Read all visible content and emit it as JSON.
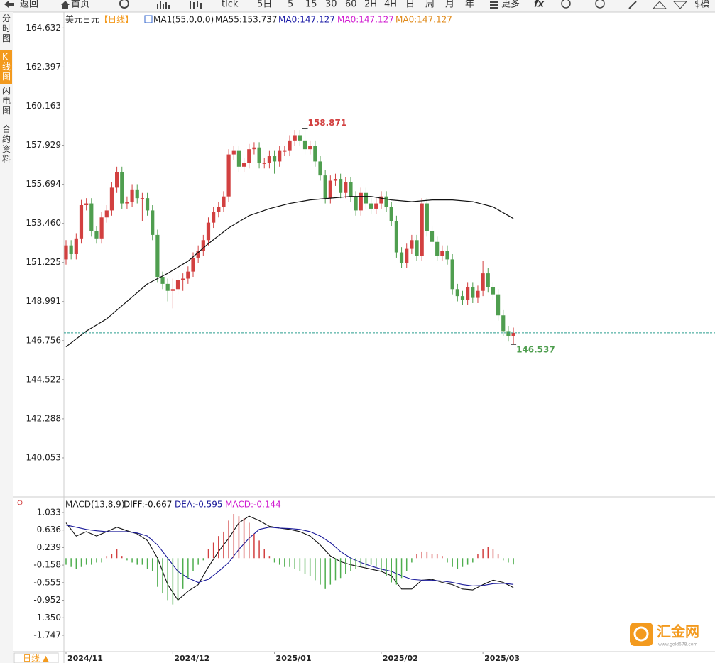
{
  "ui": {
    "toolbar": [
      "返回",
      "首页",
      "tick",
      "5日",
      "5",
      "15",
      "30",
      "60",
      "2H",
      "4H",
      "日",
      "周",
      "月",
      "年",
      "更多",
      "$模"
    ],
    "side_tabs": [
      "分时图",
      "K线图",
      "闪电图",
      "合约资料"
    ],
    "period_button": "日线 ▲",
    "logo": "汇金网",
    "logo_url": "www.gold678.com"
  },
  "chart_data": [
    {
      "type": "candlestick",
      "title": "美元日元",
      "period": "【日线】",
      "indicator_label": "MA1(55,0,0,0)",
      "ma_labels": [
        {
          "text": "MA55:153.737",
          "color": "#222222"
        },
        {
          "text": "MA0:147.127",
          "color": "#1a1aa6"
        },
        {
          "text": "MA0:147.127",
          "color": "#d01ad0"
        },
        {
          "text": "MA0:147.127",
          "color": "#e08a1a"
        }
      ],
      "up_color": "#d24040",
      "down_color": "#4f9e4f",
      "last_price_line": true,
      "last_price_color": "#2a9d8f",
      "ylim": [
        137.9,
        165.5
      ],
      "yticks": [
        164.632,
        162.397,
        160.163,
        157.929,
        155.694,
        {
          "value": 153.46,
          "label": "153.460"
        },
        151.225,
        148.991,
        146.756,
        144.522,
        142.288,
        140.053
      ],
      "open": [
        151.4,
        152.2,
        151.7,
        152.6,
        154.5,
        154.6,
        153.0,
        152.6,
        153.8,
        154.2,
        155.5,
        156.4,
        154.6,
        154.7,
        155.4,
        154.9,
        154.9,
        154.2,
        152.8,
        150.4,
        150.0,
        149.6,
        149.7,
        150.2,
        150.3,
        150.7,
        151.5,
        151.9,
        152.5,
        153.5,
        154.1,
        154.4,
        155.0,
        157.4,
        157.6,
        156.7,
        156.9,
        157.7,
        157.8,
        156.9,
        156.9,
        157.3,
        157.0,
        157.6,
        157.6,
        158.2,
        158.5,
        158.2,
        157.7,
        157.9,
        157.0,
        156.2,
        154.9,
        155.9,
        156.0,
        155.2,
        155.8,
        155.0,
        154.2,
        155.2,
        154.6,
        154.3,
        154.6,
        155.0,
        154.4,
        153.6,
        151.8,
        151.2,
        152.0,
        152.5,
        151.6,
        154.6,
        153.0,
        152.4,
        151.6,
        151.9,
        151.4,
        149.7,
        149.3,
        149.1,
        149.8,
        149.2,
        149.6,
        150.6,
        149.8,
        149.4,
        148.2,
        147.3,
        147.0
      ],
      "high": [
        152.5,
        152.5,
        152.9,
        154.8,
        154.9,
        154.9,
        153.3,
        154.1,
        154.5,
        155.8,
        156.7,
        156.7,
        155.0,
        155.7,
        155.7,
        155.2,
        155.2,
        154.5,
        153.1,
        150.7,
        150.3,
        150.3,
        150.5,
        150.6,
        151.0,
        151.8,
        152.2,
        152.8,
        153.8,
        154.4,
        154.7,
        155.3,
        157.7,
        157.9,
        157.9,
        157.2,
        158.0,
        158.1,
        158.1,
        157.2,
        157.6,
        157.6,
        157.9,
        157.9,
        158.5,
        158.8,
        158.8,
        158.871,
        158.2,
        158.2,
        157.3,
        156.5,
        156.2,
        156.3,
        156.3,
        156.1,
        156.1,
        155.3,
        155.5,
        155.5,
        154.9,
        154.9,
        155.3,
        155.3,
        154.7,
        153.9,
        152.1,
        152.3,
        152.8,
        152.8,
        154.9,
        154.9,
        153.3,
        152.7,
        152.2,
        152.2,
        151.7,
        150.0,
        149.6,
        150.1,
        150.1,
        149.9,
        151.3,
        150.9,
        150.1,
        149.7,
        148.5,
        147.6,
        147.5
      ],
      "low": [
        151.1,
        151.4,
        151.4,
        152.3,
        154.2,
        152.7,
        152.3,
        152.3,
        153.5,
        153.9,
        155.2,
        154.3,
        154.3,
        154.4,
        154.6,
        153.6,
        153.9,
        152.5,
        150.1,
        149.7,
        149.0,
        148.6,
        149.4,
        149.6,
        150.0,
        150.4,
        151.2,
        151.6,
        152.2,
        153.2,
        153.8,
        154.1,
        154.7,
        157.1,
        156.4,
        156.4,
        156.6,
        157.4,
        156.6,
        156.6,
        156.6,
        156.3,
        156.7,
        157.3,
        157.3,
        157.9,
        157.9,
        157.4,
        157.4,
        156.7,
        155.9,
        154.6,
        154.6,
        155.6,
        154.9,
        154.9,
        154.7,
        153.9,
        153.9,
        154.3,
        154.0,
        154.0,
        154.3,
        154.1,
        153.3,
        151.5,
        150.9,
        150.9,
        151.7,
        151.3,
        151.3,
        152.7,
        152.1,
        151.3,
        151.3,
        151.1,
        149.4,
        149.0,
        148.8,
        148.8,
        148.9,
        148.9,
        149.3,
        149.5,
        149.1,
        147.9,
        147.0,
        146.7,
        146.537
      ],
      "close": [
        152.2,
        151.7,
        152.6,
        154.5,
        154.6,
        153.0,
        152.6,
        153.8,
        154.2,
        155.5,
        156.4,
        154.6,
        154.7,
        155.4,
        154.9,
        154.9,
        154.2,
        152.8,
        150.4,
        150.0,
        149.6,
        149.7,
        150.2,
        150.3,
        150.7,
        151.5,
        151.9,
        152.5,
        153.5,
        154.1,
        154.4,
        155.0,
        157.4,
        157.6,
        156.7,
        156.9,
        157.7,
        157.8,
        156.9,
        156.9,
        157.3,
        157.0,
        157.6,
        157.6,
        158.2,
        158.5,
        158.2,
        157.7,
        157.9,
        157.0,
        156.2,
        154.9,
        155.9,
        156.0,
        155.2,
        155.8,
        155.0,
        154.2,
        155.2,
        154.6,
        154.3,
        154.6,
        155.0,
        154.4,
        153.6,
        151.8,
        151.2,
        152.0,
        152.5,
        151.6,
        154.6,
        153.0,
        152.4,
        151.6,
        151.9,
        151.4,
        149.7,
        149.3,
        149.1,
        149.8,
        149.2,
        149.6,
        150.6,
        149.8,
        149.4,
        148.2,
        147.3,
        147.0,
        147.2
      ],
      "ma": {
        "color": "#111111",
        "x": [
          0,
          4,
          8,
          12,
          16,
          20,
          24,
          28,
          32,
          36,
          40,
          44,
          48,
          52,
          56,
          60,
          64,
          68,
          72,
          76,
          80,
          84,
          88
        ],
        "values": [
          146.4,
          147.3,
          148.0,
          149.0,
          150.0,
          150.6,
          151.3,
          152.3,
          153.2,
          153.9,
          154.3,
          154.6,
          154.8,
          154.9,
          155.0,
          155.0,
          154.8,
          154.7,
          154.8,
          154.8,
          154.7,
          154.4,
          153.737
        ]
      }
    },
    {
      "type": "macd",
      "title": "MACD(13,8,9)",
      "ylim": [
        -2.117,
        1.338
      ],
      "yticks": [
        1.033,
        0.636,
        0.239,
        -0.158,
        -0.555,
        -0.952,
        {
          "value": -1.35,
          "label": "-1.350"
        },
        -1.747
      ],
      "xticks": [
        {
          "value": 0,
          "label": "2024/11"
        },
        {
          "value": 21,
          "label": "2024/12"
        },
        {
          "value": 41,
          "label": "2025/01"
        },
        {
          "value": 62,
          "label": "2025/02"
        },
        {
          "value": 82,
          "label": "2025/03"
        }
      ],
      "series": [
        {
          "name": "DIFF:-0.667",
          "color": "#111111",
          "x": [
            0,
            2,
            4,
            6,
            8,
            10,
            12,
            14,
            16,
            18,
            20,
            22,
            24,
            26,
            28,
            30,
            32,
            34,
            36,
            38,
            40,
            42,
            44,
            46,
            48,
            50,
            52,
            54,
            56,
            58,
            60,
            62,
            64,
            66,
            68,
            70,
            72,
            74,
            76,
            78,
            80,
            82,
            84,
            86,
            88
          ],
          "values": [
            0.8,
            0.5,
            0.6,
            0.5,
            0.6,
            0.7,
            0.62,
            0.55,
            0.4,
            0.0,
            -0.6,
            -0.95,
            -0.75,
            -0.6,
            -0.2,
            0.15,
            0.45,
            0.8,
            0.95,
            0.85,
            0.72,
            0.68,
            0.65,
            0.6,
            0.5,
            0.3,
            0.05,
            -0.08,
            -0.15,
            -0.2,
            -0.25,
            -0.3,
            -0.4,
            -0.7,
            -0.7,
            -0.5,
            -0.48,
            -0.55,
            -0.6,
            -0.7,
            -0.72,
            -0.6,
            -0.5,
            -0.55,
            -0.667
          ]
        },
        {
          "name": "DEA:-0.595",
          "color": "#1a1a9a",
          "x": [
            0,
            2,
            4,
            6,
            8,
            10,
            12,
            14,
            16,
            18,
            20,
            22,
            24,
            26,
            28,
            30,
            32,
            34,
            36,
            38,
            40,
            42,
            44,
            46,
            48,
            50,
            52,
            54,
            56,
            58,
            60,
            62,
            64,
            66,
            68,
            70,
            72,
            74,
            76,
            78,
            80,
            82,
            84,
            86,
            88
          ],
          "values": [
            0.75,
            0.7,
            0.65,
            0.62,
            0.6,
            0.6,
            0.6,
            0.57,
            0.5,
            0.3,
            0.0,
            -0.3,
            -0.45,
            -0.55,
            -0.48,
            -0.3,
            -0.1,
            0.2,
            0.45,
            0.65,
            0.7,
            0.68,
            0.67,
            0.65,
            0.6,
            0.5,
            0.35,
            0.15,
            0.0,
            -0.1,
            -0.18,
            -0.25,
            -0.3,
            -0.4,
            -0.48,
            -0.5,
            -0.5,
            -0.52,
            -0.55,
            -0.6,
            -0.63,
            -0.62,
            -0.58,
            -0.57,
            -0.595
          ]
        },
        {
          "name": "MACD:-0.144",
          "color": "#d01ad0",
          "up_color": "#d24040",
          "down_color": "#4fae4f",
          "values": [
            -0.15,
            -0.2,
            -0.25,
            -0.2,
            -0.15,
            -0.15,
            -0.1,
            -0.1,
            0.05,
            0.1,
            0.2,
            0.05,
            -0.05,
            -0.1,
            -0.15,
            -0.15,
            -0.25,
            -0.3,
            -0.65,
            -0.8,
            -0.95,
            -1.05,
            -0.95,
            -0.7,
            -0.45,
            -0.3,
            -0.15,
            -0.05,
            0.2,
            0.35,
            0.5,
            0.6,
            0.85,
            1.0,
            0.95,
            0.9,
            0.8,
            0.55,
            0.4,
            0.2,
            0.05,
            -0.1,
            -0.15,
            -0.2,
            -0.2,
            -0.25,
            -0.3,
            -0.35,
            -0.4,
            -0.5,
            -0.6,
            -0.7,
            -0.6,
            -0.5,
            -0.45,
            -0.35,
            -0.3,
            -0.25,
            -0.2,
            -0.2,
            -0.15,
            -0.2,
            -0.3,
            -0.4,
            -0.55,
            -0.6,
            -0.45,
            -0.3,
            -0.1,
            0.1,
            0.15,
            0.15,
            0.1,
            0.1,
            0.05,
            -0.1,
            -0.2,
            -0.25,
            -0.2,
            -0.15,
            -0.1,
            0.1,
            0.2,
            0.25,
            0.2,
            0.1,
            -0.05,
            -0.1,
            -0.144
          ]
        }
      ]
    }
  ]
}
